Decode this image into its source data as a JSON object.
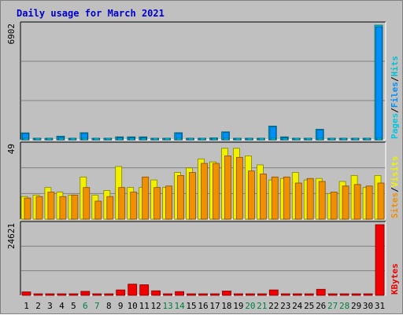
{
  "colors": {
    "hits": "#00c0d8",
    "files": "#0090f8",
    "pages": "#00c8e0",
    "visits": "#f0f000",
    "sites": "#f09000",
    "kbytes": "#f00000",
    "weekend": "#008040",
    "weekday": "#000000",
    "title": "#0000cc",
    "panel": "#c0c0c0"
  },
  "chart_data": {
    "type": "bar",
    "title": "Daily usage for March 2021",
    "days": [
      "1",
      "2",
      "3",
      "4",
      "5",
      "6",
      "7",
      "8",
      "9",
      "10",
      "11",
      "12",
      "13",
      "14",
      "15",
      "16",
      "17",
      "18",
      "19",
      "20",
      "21",
      "22",
      "23",
      "24",
      "25",
      "26",
      "27",
      "28",
      "29",
      "30",
      "31"
    ],
    "weekend_days": [
      "6",
      "7",
      "13",
      "14",
      "20",
      "21",
      "27",
      "28"
    ],
    "panels": [
      {
        "id": "hits-panel",
        "ymax_label": "6902",
        "ymax": 6902,
        "legend": [
          {
            "text": "Hits",
            "color": "#00c0d8"
          },
          {
            "text": "/",
            "color": "#000000"
          },
          {
            "text": "Files",
            "color": "#0090f8"
          },
          {
            "text": "/",
            "color": "#000000"
          },
          {
            "text": "Pages",
            "color": "#00c8e0"
          }
        ],
        "series": [
          {
            "name": "Hits",
            "color": "#00c0d8",
            "values": [
              420,
              90,
              90,
              220,
              90,
              430,
              90,
              90,
              180,
              180,
              180,
              90,
              90,
              430,
              90,
              90,
              120,
              480,
              90,
              90,
              90,
              830,
              180,
              90,
              90,
              640,
              90,
              90,
              90,
              90,
              6902
            ]
          },
          {
            "name": "Files",
            "color": "#0090f8",
            "values": [
              380,
              60,
              60,
              180,
              60,
              390,
              60,
              60,
              150,
              150,
              150,
              60,
              60,
              390,
              60,
              60,
              90,
              440,
              60,
              60,
              60,
              780,
              150,
              60,
              60,
              600,
              60,
              60,
              60,
              60,
              6800
            ]
          },
          {
            "name": "Pages",
            "color": "#00c8e0",
            "values": [
              40,
              20,
              20,
              30,
              20,
              40,
              20,
              20,
              30,
              30,
              30,
              20,
              20,
              40,
              20,
              20,
              30,
              40,
              20,
              20,
              20,
              50,
              30,
              20,
              20,
              40,
              20,
              20,
              20,
              20,
              60
            ]
          }
        ]
      },
      {
        "id": "visits-panel",
        "ymax_label": "49",
        "ymax": 49,
        "legend": [
          {
            "text": "Visits",
            "color": "#f0f000"
          },
          {
            "text": "/",
            "color": "#000000"
          },
          {
            "text": "Sites",
            "color": "#f09000"
          }
        ],
        "series": [
          {
            "name": "Visits",
            "color": "#f0f000",
            "values": [
              15,
              16,
              21,
              18,
              16,
              28,
              16,
              19,
              35,
              21,
              21,
              26,
              21,
              31,
              34,
              40,
              38,
              47,
              47,
              42,
              36,
              26,
              27,
              31,
              26,
              27,
              17,
              25,
              29,
              21,
              29
            ]
          },
          {
            "name": "Sites",
            "color": "#f09000",
            "values": [
              14,
              15,
              18,
              15,
              16,
              21,
              12,
              15,
              21,
              18,
              28,
              21,
              22,
              29,
              31,
              37,
              37,
              42,
              41,
              32,
              30,
              28,
              28,
              24,
              27,
              25,
              18,
              22,
              23,
              22,
              24
            ]
          }
        ]
      },
      {
        "id": "kbytes-panel",
        "ymax_label": "24621",
        "ymax": 24621,
        "legend": [
          {
            "text": "KBytes",
            "color": "#f00000"
          }
        ],
        "series": [
          {
            "name": "KBytes",
            "color": "#f00000",
            "values": [
              1200,
              400,
              300,
              400,
              300,
              1400,
              300,
              300,
              1900,
              3900,
              3700,
              1600,
              300,
              1300,
              300,
              300,
              400,
              1500,
              400,
              400,
              400,
              1900,
              500,
              400,
              400,
              2100,
              400,
              400,
              400,
              300,
              24621
            ]
          }
        ]
      }
    ]
  }
}
